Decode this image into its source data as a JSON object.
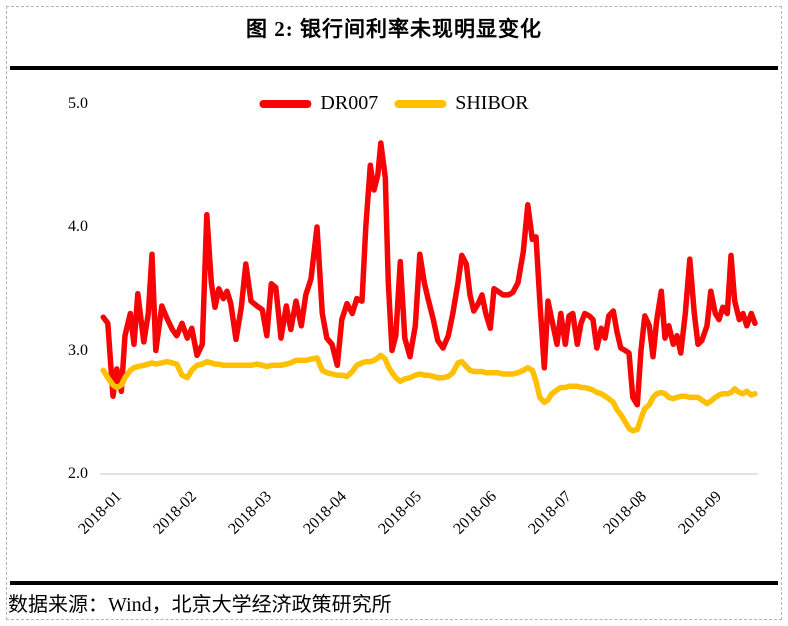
{
  "figure": {
    "title": "图 2: 银行间利率未现明显变化",
    "source": "数据来源：Wind，北京大学经济政策研究所"
  },
  "chart_data": {
    "type": "line",
    "title": "图 2: 银行间利率未现明显变化",
    "xlabel": "",
    "ylabel": "",
    "x_unit": "months since 2018-01 (0 = 2018-01 tick)",
    "xlim": [
      -0.1,
      8.7
    ],
    "ylim": [
      2.0,
      5.0
    ],
    "y_ticks": [
      5.0,
      4.0,
      3.0,
      2.0
    ],
    "y_tick_labels": [
      "5.0",
      "4.0",
      "3.0",
      "2.0"
    ],
    "x_tick_positions": [
      0,
      1,
      2,
      3,
      4,
      5,
      6,
      7,
      8
    ],
    "x_tick_labels": [
      "2018-01",
      "2018-02",
      "2018-03",
      "2018-04",
      "2018-05",
      "2018-06",
      "2018-07",
      "2018-08",
      "2018-09"
    ],
    "baseline_gridline": 2.0,
    "gridline_color": "#d9d9d9",
    "legend_position": "top-center",
    "x": [
      -0.05,
      0.01,
      0.08,
      0.13,
      0.19,
      0.24,
      0.31,
      0.36,
      0.41,
      0.49,
      0.55,
      0.6,
      0.65,
      0.73,
      0.8,
      0.87,
      0.93,
      1.0,
      1.07,
      1.13,
      1.2,
      1.27,
      1.33,
      1.39,
      1.44,
      1.49,
      1.55,
      1.6,
      1.65,
      1.72,
      1.79,
      1.85,
      1.92,
      2.0,
      2.07,
      2.13,
      2.19,
      2.25,
      2.32,
      2.39,
      2.45,
      2.52,
      2.59,
      2.65,
      2.72,
      2.8,
      2.87,
      2.93,
      3.0,
      3.07,
      3.13,
      3.2,
      3.27,
      3.33,
      3.4,
      3.45,
      3.51,
      3.56,
      3.61,
      3.65,
      3.71,
      3.75,
      3.8,
      3.85,
      3.91,
      3.97,
      4.04,
      4.11,
      4.17,
      4.23,
      4.28,
      4.35,
      4.41,
      4.48,
      4.55,
      4.61,
      4.68,
      4.73,
      4.79,
      4.84,
      4.89,
      4.95,
      5.0,
      5.05,
      5.11,
      5.16,
      5.21,
      5.28,
      5.35,
      5.41,
      5.48,
      5.55,
      5.61,
      5.67,
      5.72,
      5.77,
      5.83,
      5.88,
      5.93,
      6.0,
      6.05,
      6.11,
      6.16,
      6.21,
      6.27,
      6.32,
      6.37,
      6.43,
      6.48,
      6.53,
      6.59,
      6.64,
      6.69,
      6.75,
      6.8,
      6.85,
      6.91,
      6.96,
      7.01,
      7.07,
      7.12,
      7.17,
      7.23,
      7.28,
      7.33,
      7.39,
      7.44,
      7.49,
      7.55,
      7.6,
      7.65,
      7.71,
      7.77,
      7.83,
      7.88,
      7.93,
      8.0,
      8.05,
      8.11,
      8.16,
      8.21,
      8.27,
      8.32,
      8.37,
      8.43,
      8.48,
      8.53,
      8.59,
      8.64
    ],
    "series": [
      {
        "name": "DR007",
        "color": "#f50505",
        "values": [
          3.27,
          3.22,
          2.63,
          2.85,
          2.67,
          3.12,
          3.3,
          3.05,
          3.46,
          3.07,
          3.3,
          3.78,
          3.0,
          3.36,
          3.26,
          3.17,
          3.12,
          3.22,
          3.1,
          3.18,
          2.96,
          3.05,
          4.1,
          3.55,
          3.35,
          3.5,
          3.42,
          3.48,
          3.38,
          3.09,
          3.35,
          3.7,
          3.4,
          3.36,
          3.33,
          3.12,
          3.54,
          3.51,
          3.1,
          3.36,
          3.17,
          3.4,
          3.2,
          3.45,
          3.58,
          4.0,
          3.3,
          3.1,
          3.05,
          2.88,
          3.25,
          3.38,
          3.3,
          3.42,
          3.4,
          4.0,
          4.5,
          4.3,
          4.42,
          4.68,
          4.4,
          3.55,
          3.0,
          3.12,
          3.72,
          3.1,
          2.95,
          3.2,
          3.78,
          3.55,
          3.42,
          3.25,
          3.08,
          3.02,
          3.12,
          3.3,
          3.55,
          3.77,
          3.7,
          3.45,
          3.32,
          3.38,
          3.45,
          3.3,
          3.18,
          3.5,
          3.48,
          3.45,
          3.45,
          3.47,
          3.55,
          3.8,
          4.18,
          3.9,
          3.92,
          3.4,
          2.86,
          3.4,
          3.25,
          3.05,
          3.3,
          3.05,
          3.28,
          3.3,
          3.05,
          3.22,
          3.3,
          3.28,
          3.25,
          3.02,
          3.18,
          3.1,
          3.28,
          3.32,
          3.15,
          3.02,
          3.0,
          2.98,
          2.62,
          2.56,
          3.0,
          3.28,
          3.2,
          2.95,
          3.25,
          3.48,
          3.1,
          3.2,
          3.05,
          3.12,
          2.98,
          3.3,
          3.74,
          3.3,
          3.05,
          3.08,
          3.2,
          3.48,
          3.3,
          3.25,
          3.35,
          3.3,
          3.77,
          3.4,
          3.25,
          3.3,
          3.2,
          3.3,
          3.22
        ]
      },
      {
        "name": "SHIBOR",
        "color": "#ffc000",
        "values": [
          2.84,
          2.78,
          2.72,
          2.7,
          2.72,
          2.78,
          2.84,
          2.86,
          2.87,
          2.88,
          2.89,
          2.9,
          2.89,
          2.9,
          2.91,
          2.9,
          2.89,
          2.8,
          2.78,
          2.84,
          2.88,
          2.89,
          2.91,
          2.9,
          2.89,
          2.89,
          2.88,
          2.88,
          2.88,
          2.88,
          2.88,
          2.88,
          2.88,
          2.89,
          2.88,
          2.87,
          2.88,
          2.88,
          2.88,
          2.89,
          2.9,
          2.92,
          2.92,
          2.92,
          2.93,
          2.94,
          2.84,
          2.82,
          2.81,
          2.8,
          2.8,
          2.79,
          2.83,
          2.88,
          2.9,
          2.91,
          2.91,
          2.92,
          2.94,
          2.96,
          2.93,
          2.87,
          2.82,
          2.78,
          2.75,
          2.77,
          2.78,
          2.8,
          2.81,
          2.8,
          2.8,
          2.79,
          2.78,
          2.78,
          2.79,
          2.82,
          2.9,
          2.91,
          2.87,
          2.84,
          2.83,
          2.83,
          2.83,
          2.82,
          2.82,
          2.82,
          2.82,
          2.81,
          2.81,
          2.81,
          2.82,
          2.84,
          2.86,
          2.84,
          2.75,
          2.62,
          2.58,
          2.6,
          2.65,
          2.68,
          2.7,
          2.7,
          2.71,
          2.71,
          2.71,
          2.7,
          2.7,
          2.69,
          2.68,
          2.66,
          2.65,
          2.63,
          2.61,
          2.58,
          2.52,
          2.48,
          2.42,
          2.37,
          2.35,
          2.36,
          2.45,
          2.53,
          2.56,
          2.62,
          2.65,
          2.66,
          2.65,
          2.62,
          2.61,
          2.62,
          2.63,
          2.63,
          2.62,
          2.62,
          2.62,
          2.6,
          2.57,
          2.59,
          2.62,
          2.64,
          2.65,
          2.65,
          2.66,
          2.69,
          2.66,
          2.65,
          2.67,
          2.64,
          2.65
        ]
      }
    ]
  }
}
